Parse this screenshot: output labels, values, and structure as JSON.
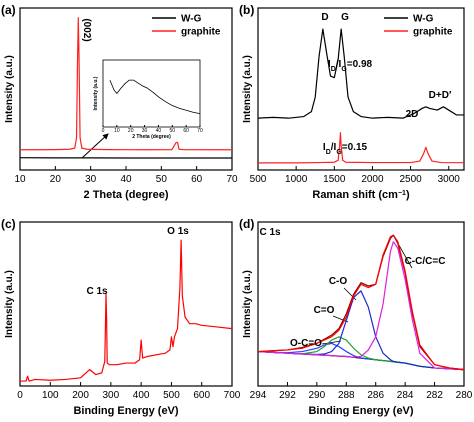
{
  "chart_data": [
    {
      "type": "line",
      "label": "(a)",
      "x_label": "2 Theta (degree)",
      "y_label": "Intensity (a.u.)",
      "xlim": [
        10,
        70
      ],
      "xticks": [
        10,
        20,
        30,
        40,
        50,
        60,
        70
      ],
      "ylim": [
        0,
        100
      ],
      "legend": "upper right",
      "series": [
        {
          "name": "W-G",
          "color": "#000000",
          "x": [
            10,
            20,
            30,
            40,
            50,
            60,
            70
          ],
          "values": [
            7.6,
            7.5,
            7.5,
            7.4,
            7.4,
            7.4,
            7.4
          ]
        },
        {
          "name": "graphite",
          "color": "#ff2020",
          "x": [
            10,
            15,
            20,
            24,
            25.5,
            26,
            26.3,
            26.5,
            26.7,
            27,
            27.5,
            29,
            35,
            45,
            53,
            54.2,
            54.6,
            55,
            56,
            65,
            70
          ],
          "values": [
            12.5,
            12.5,
            12.6,
            12.8,
            13.5,
            20,
            70,
            94,
            70,
            20,
            13.5,
            12.8,
            12.6,
            12.5,
            12.6,
            17,
            17,
            12.8,
            12.6,
            12.5,
            12.5
          ]
        }
      ],
      "annotations": [
        "(002)"
      ],
      "inset": {
        "type": "line",
        "x_label": "2 Theta (degree)",
        "y_label": "Intensity (a.u.)",
        "xlim": [
          0,
          70
        ],
        "xticks": [
          0,
          10,
          20,
          30,
          40,
          50,
          60,
          70
        ],
        "ylim": [
          0,
          100
        ],
        "series": [
          {
            "color": "#000000",
            "x": [
              5,
              8,
              10,
              13,
              16,
              19,
              22,
              25,
              28,
              32,
              36,
              40,
              45,
              50,
              55,
              60,
              65,
              70
            ],
            "values": [
              70,
              55,
              50,
              58,
              65,
              70,
              70,
              66,
              62,
              58,
              52,
              45,
              38,
              32,
              28,
              25,
              22,
              20
            ]
          }
        ]
      }
    },
    {
      "type": "line",
      "label": "(b)",
      "x_label": {
        "parts": [
          "Raman shift (cm",
          "−1",
          ")"
        ],
        "shift": "super"
      },
      "y_label": "Intensity (a.u.)",
      "xlim": [
        500,
        3200
      ],
      "xticks": [
        500,
        1000,
        1500,
        2000,
        2500,
        3000
      ],
      "ylim": [
        0,
        100
      ],
      "legend": "upper right",
      "series": [
        {
          "name": "W-G",
          "color": "#000000",
          "x": [
            500,
            700,
            900,
            1100,
            1200,
            1250,
            1300,
            1350,
            1400,
            1450,
            1500,
            1550,
            1590,
            1630,
            1680,
            1750,
            1850,
            2000,
            2200,
            2400,
            2550,
            2650,
            2700,
            2750,
            2850,
            2930,
            3000,
            3100,
            3200
          ],
          "values": [
            32,
            32.5,
            32,
            33,
            36,
            45,
            70,
            87,
            72,
            58,
            57,
            68,
            87,
            70,
            45,
            36,
            33,
            32,
            32.5,
            32,
            35,
            38,
            39,
            38,
            37,
            39,
            37,
            34,
            34
          ]
        },
        {
          "name": "graphite",
          "color": "#ff2020",
          "x": [
            500,
            1000,
            1300,
            1500,
            1550,
            1570,
            1580,
            1590,
            1610,
            1650,
            2000,
            2500,
            2620,
            2670,
            2700,
            2730,
            2780,
            2900,
            3200
          ],
          "values": [
            4.4,
            4.4,
            4.6,
            4.8,
            6,
            15,
            23,
            15,
            6,
            4.8,
            4.6,
            4.6,
            5.5,
            10,
            14,
            10,
            5.5,
            4.6,
            4.5
          ]
        }
      ],
      "annotations": [
        "D",
        "G",
        {
          "parts": [
            "I",
            "D",
            "/I",
            "G",
            "=0.98"
          ],
          "shift": "sub"
        },
        "2D",
        "D+D′",
        {
          "parts": [
            "I",
            "D",
            "/I",
            "G",
            "=0.15"
          ],
          "shift": "sub"
        }
      ]
    },
    {
      "type": "line",
      "label": "(c)",
      "x_label": "Binding Energy (eV)",
      "y_label": "Intensity (a.u.)",
      "xlim": [
        0,
        700
      ],
      "xticks": [
        0,
        100,
        200,
        300,
        400,
        500,
        600,
        700
      ],
      "ylim": [
        0,
        100
      ],
      "series": [
        {
          "color": "#ff0000",
          "x": [
            0,
            20,
            25,
            30,
            50,
            100,
            150,
            200,
            230,
            250,
            270,
            280,
            284,
            286,
            288,
            295,
            320,
            350,
            380,
            395,
            400,
            405,
            420,
            450,
            480,
            495,
            500,
            505,
            510,
            520,
            528,
            532,
            536,
            545,
            560,
            580,
            600,
            650,
            700
          ],
          "values": [
            3,
            3,
            6,
            3,
            4,
            3.5,
            4,
            5,
            10,
            7,
            8,
            15,
            56,
            40,
            14,
            13,
            13,
            14,
            14,
            16,
            28,
            17,
            18,
            19,
            20,
            22,
            30,
            24,
            30,
            35,
            60,
            89,
            55,
            42,
            38,
            38,
            37,
            36,
            35
          ]
        }
      ],
      "annotations": [
        "O 1s",
        "C 1s"
      ]
    },
    {
      "type": "line",
      "label": "(d)",
      "x_label": "Binding Energy (eV)",
      "y_label": "Intensity (a.u.)",
      "xlim": [
        294,
        280
      ],
      "xticks": [
        294,
        292,
        290,
        288,
        286,
        284,
        282,
        280
      ],
      "ylim": [
        0,
        100
      ],
      "series": [
        {
          "color": "#000000",
          "x": [
            294,
            293,
            292,
            291,
            290,
            289.5,
            289,
            288.5,
            288,
            287.5,
            287,
            286.5,
            286,
            285.5,
            285,
            284.8,
            284.5,
            284,
            283.5,
            283,
            282,
            281,
            280
          ],
          "values": [
            21,
            20.5,
            20,
            19.5,
            19,
            18.8,
            18.5,
            18.2,
            18,
            17.5,
            17,
            16.5,
            16,
            15.5,
            15,
            14.8,
            14.5,
            14,
            13,
            12,
            11,
            10.5,
            10
          ]
        },
        {
          "color": "#1f3fff",
          "x": [
            294,
            293,
            292,
            291,
            290,
            289.5,
            289,
            288.5,
            288,
            287.5,
            287,
            286.5,
            286,
            285.5,
            285,
            284.8,
            284.5,
            284,
            283.5,
            283,
            282,
            281,
            280
          ],
          "values": [
            21,
            20.5,
            20.3,
            21,
            23,
            25,
            26,
            24,
            21,
            18.5,
            17,
            16.5,
            16,
            15.5,
            15,
            14.8,
            14.5,
            14,
            13,
            12,
            11,
            10.5,
            10
          ]
        },
        {
          "color": "#2ca02c",
          "x": [
            294,
            293,
            292,
            291,
            290,
            289.5,
            289,
            288.5,
            288,
            287.5,
            287,
            286.5,
            286,
            285.5,
            285,
            284.8,
            284.5,
            284,
            283.5,
            283,
            282,
            281,
            280
          ],
          "values": [
            21,
            20.5,
            20,
            19.6,
            21,
            24,
            28,
            30,
            28,
            23,
            19,
            17,
            16,
            15.5,
            15,
            14.8,
            14.5,
            14,
            13,
            12,
            11,
            10.5,
            10
          ]
        },
        {
          "color": "#1a2ccf",
          "x": [
            294,
            293,
            292,
            291,
            290,
            289.5,
            289,
            288.5,
            288,
            287.5,
            287,
            286.5,
            286,
            285.5,
            285,
            284.8,
            284.5,
            284,
            283.5,
            283,
            282,
            281,
            280
          ],
          "values": [
            21,
            20.5,
            20,
            19.5,
            19.2,
            19.5,
            21,
            26,
            40,
            54,
            58,
            48,
            30,
            20,
            16,
            15,
            14.5,
            14,
            13,
            12,
            11,
            10.5,
            10
          ]
        },
        {
          "color": "#e020e0",
          "x": [
            294,
            293,
            292,
            291,
            290,
            289.5,
            289,
            288.5,
            288,
            287.5,
            287,
            286.5,
            286,
            285.5,
            285,
            284.8,
            284.5,
            284,
            283.5,
            283,
            282,
            281,
            280
          ],
          "values": [
            21,
            20.5,
            20,
            19.5,
            19,
            18.8,
            18.5,
            18.2,
            18,
            17.5,
            18,
            22,
            30,
            50,
            82,
            88,
            84,
            65,
            40,
            20,
            11,
            10.5,
            10
          ]
        },
        {
          "color": "#8b0000",
          "x": [
            294,
            293,
            292,
            291,
            290,
            289.5,
            289,
            288.5,
            288,
            287.5,
            287,
            286.5,
            286,
            285.5,
            285,
            284.8,
            284.5,
            284,
            283.5,
            283,
            282,
            281,
            280
          ],
          "values": [
            21,
            21.5,
            22,
            23.5,
            26,
            28.5,
            31,
            35,
            44,
            56,
            63,
            61,
            62,
            79,
            90,
            92,
            87,
            69,
            44,
            24,
            13,
            11,
            10
          ]
        },
        {
          "color": "#ff0000",
          "x": [
            294,
            293,
            292,
            291,
            290,
            289.5,
            289,
            288.5,
            288,
            287.5,
            287,
            286.5,
            286,
            285.5,
            285,
            284.8,
            284.5,
            284,
            283.5,
            283,
            282,
            281,
            280
          ],
          "values": [
            21,
            21.5,
            22,
            23,
            26,
            28,
            30,
            34,
            42,
            55,
            62,
            60,
            62,
            80,
            91,
            92,
            88,
            70,
            45,
            25,
            13,
            11,
            10
          ]
        }
      ],
      "annotations": [
        "C 1s",
        "C-C/C=C",
        "C-O",
        "C=O",
        "O-C=O"
      ]
    }
  ]
}
